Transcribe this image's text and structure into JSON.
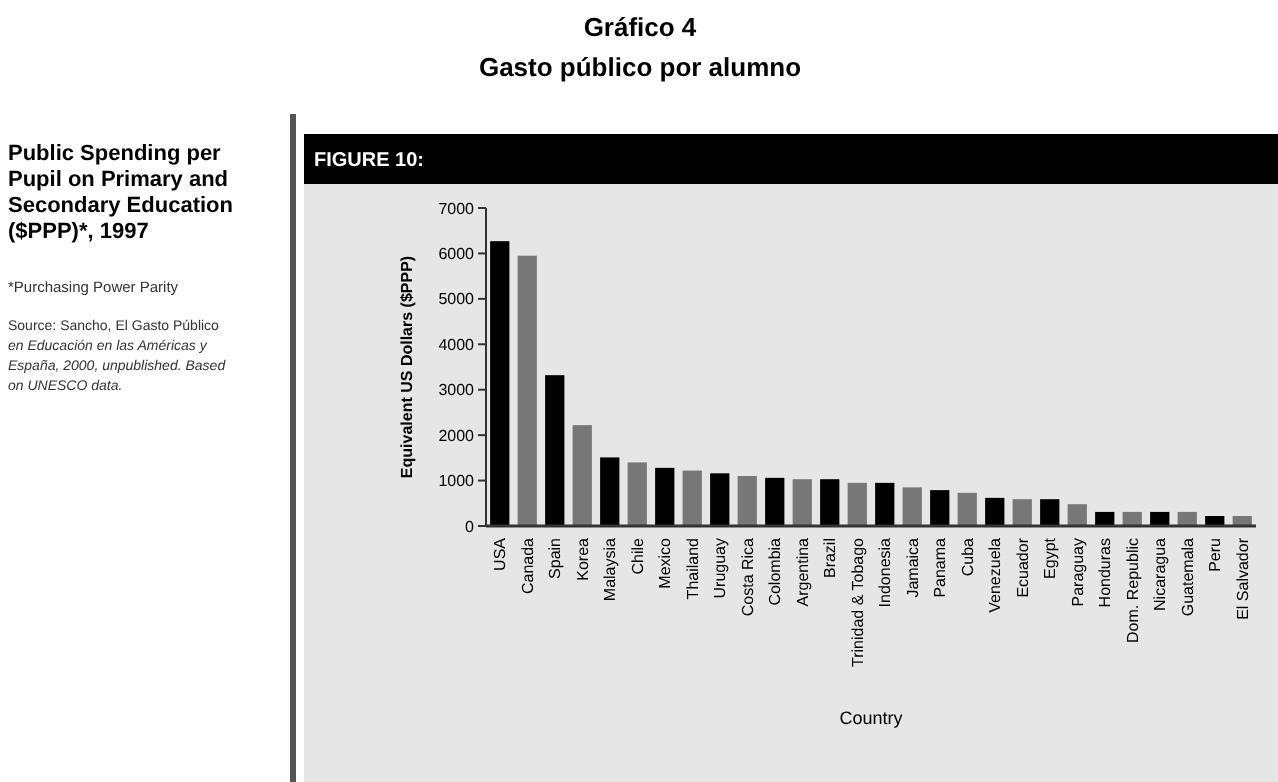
{
  "chart_data": {
    "type": "bar",
    "title": "Gráfico 4",
    "subtitle": "Gasto público por alumno",
    "xlabel": "Country",
    "ylabel": "Equivalent US Dollars ($PPP)",
    "annotations": [
      "Public Spending per Pupil on Primary and Secondary Education ($PPP)*, 1997",
      "*Purchasing Power Parity",
      "Source: Sancho, El Gasto Público en Educación en las Américas y España, 2000, unpublished. Based on UNESCO data.",
      "FIGURE 10:"
    ],
    "categories": [
      "USA",
      "Canada",
      "Spain",
      "Korea",
      "Malaysia",
      "Chile",
      "Mexico",
      "Thailand",
      "Uruguay",
      "Costa Rica",
      "Colombia",
      "Argentina",
      "Brazil",
      "Trinidad & Tobago",
      "Indonesia",
      "Jamaica",
      "Panama",
      "Cuba",
      "Venezuela",
      "Ecuador",
      "Egypt",
      "Paraguay",
      "Honduras",
      "Dom. Republic",
      "Nicaragua",
      "Guatemala",
      "Peru",
      "El Salvador"
    ],
    "values": [
      6270,
      5950,
      3320,
      2220,
      1510,
      1400,
      1280,
      1220,
      1160,
      1100,
      1060,
      1030,
      1030,
      950,
      950,
      850,
      790,
      730,
      620,
      590,
      590,
      480,
      310,
      310,
      310,
      310,
      220,
      220
    ],
    "colors": [
      "#000000",
      "#777777",
      "#000000",
      "#777777",
      "#000000",
      "#777777",
      "#000000",
      "#777777",
      "#000000",
      "#777777",
      "#000000",
      "#777777",
      "#000000",
      "#777777",
      "#000000",
      "#777777",
      "#000000",
      "#777777",
      "#000000",
      "#777777",
      "#000000",
      "#777777",
      "#000000",
      "#777777",
      "#000000",
      "#777777",
      "#000000",
      "#777777"
    ],
    "ylim": [
      0,
      7000
    ],
    "yticks": [
      0,
      1000,
      2000,
      3000,
      4000,
      5000,
      6000,
      7000
    ]
  }
}
